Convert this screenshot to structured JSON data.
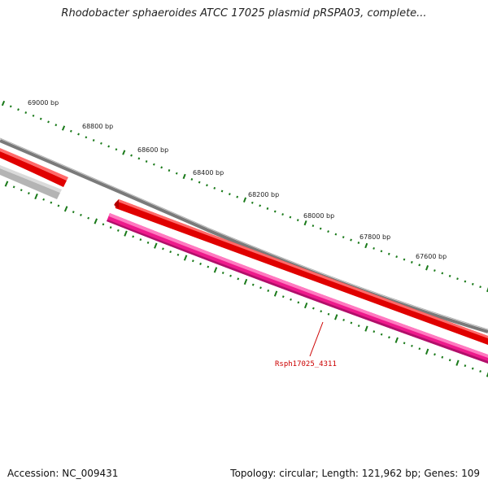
{
  "header": {
    "title": "Rhodobacter sphaeroides ATCC 17025 plasmid pRSPA03, complete..."
  },
  "footer": {
    "accession": "Accession: NC_009431",
    "summary": "Topology: circular; Length: 121,962 bp; Genes: 109"
  },
  "map": {
    "ruler_labels": [
      "69000 bp",
      "68800 bp",
      "68600 bp",
      "68400 bp",
      "68200 bp",
      "68000 bp",
      "67800 bp",
      "67600 bp"
    ],
    "gene_label": "Rsph17025_4311",
    "colors": {
      "ruler_ticks": "#1a7a1a",
      "backbone": "#7a7a7a",
      "feature_red": "#e00000",
      "feature_red_light": "#ff6a6a",
      "feature_grey": "#b4b4b4",
      "feature_grey_light": "#dadada",
      "feature_pink": "#ee1a8c",
      "feature_pink_dark": "#b0106a",
      "feature_pink_light": "#ff7ac0",
      "gene_label": "#cc0000"
    }
  }
}
